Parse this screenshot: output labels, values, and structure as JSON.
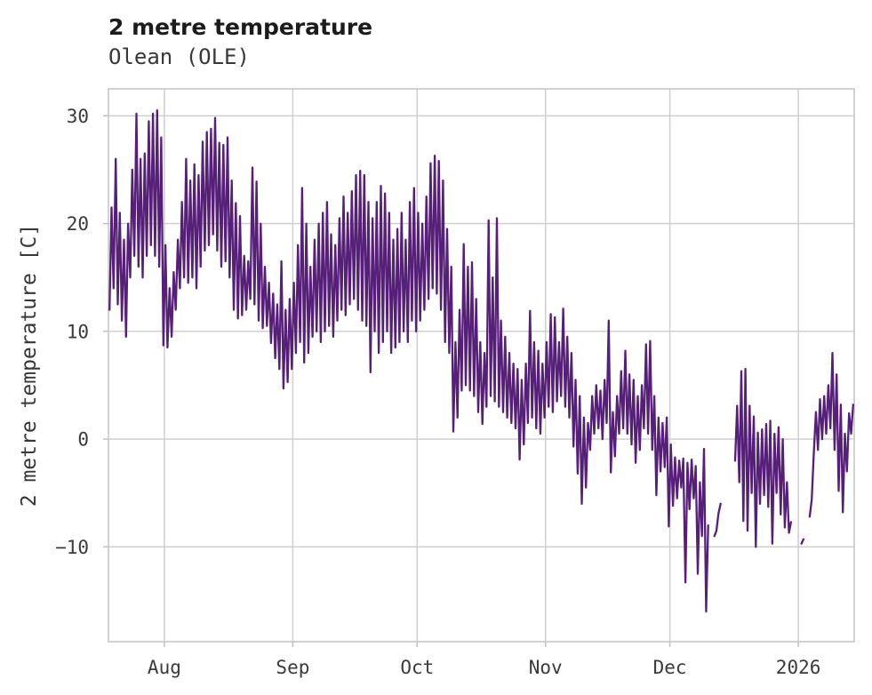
{
  "chart_data": {
    "type": "line",
    "title": "2 metre temperature",
    "subtitle": "Olean (OLE)",
    "ylabel": "2 metre temperature [C]",
    "xlabel": "",
    "line_color": "#561f78",
    "grid_color": "#cccccc",
    "text_color": "#3a3a3a",
    "grid": true,
    "legend_position": "none",
    "x_axis_note": "x in days; day 0 = left edge (mid-July), series runs through the 2026 tick (January); null entries are data gaps drawn as line breaks",
    "xlim": [
      0,
      180
    ],
    "ylim": [
      -18.8,
      32.5
    ],
    "x_ticks": [
      {
        "pos": 13.5,
        "label": "Aug"
      },
      {
        "pos": 44.5,
        "label": "Sep"
      },
      {
        "pos": 74.5,
        "label": "Oct"
      },
      {
        "pos": 105.5,
        "label": "Nov"
      },
      {
        "pos": 135.5,
        "label": "Dec"
      },
      {
        "pos": 166.5,
        "label": "2026"
      }
    ],
    "y_ticks": [
      {
        "pos": 30,
        "label": "30"
      },
      {
        "pos": 20,
        "label": "20"
      },
      {
        "pos": 10,
        "label": "10"
      },
      {
        "pos": 0,
        "label": "0"
      },
      {
        "pos": -10,
        "label": "−10"
      }
    ],
    "daily_min_max": [
      [
        12,
        21.5
      ],
      [
        14,
        26
      ],
      [
        12.5,
        21
      ],
      [
        11,
        18.5
      ],
      [
        9.5,
        20
      ],
      [
        15,
        25
      ],
      [
        17,
        30.2
      ],
      [
        16,
        26
      ],
      [
        15,
        26.5
      ],
      [
        17,
        29.5
      ],
      [
        18,
        30.2
      ],
      [
        17,
        30.5
      ],
      [
        16,
        28
      ],
      [
        8.7,
        18
      ],
      [
        8.5,
        14
      ],
      [
        9.5,
        15.5
      ],
      [
        12,
        18.5
      ],
      [
        14,
        22
      ],
      [
        15,
        26
      ],
      [
        14.5,
        24
      ],
      [
        15,
        25.5
      ],
      [
        14,
        24.5
      ],
      [
        16,
        27.6
      ],
      [
        17.5,
        28.5
      ],
      [
        18,
        28.8
      ],
      [
        19,
        29.8
      ],
      [
        17.5,
        27.5
      ],
      [
        16,
        27.3
      ],
      [
        16.5,
        28
      ],
      [
        15,
        24
      ],
      [
        12,
        21.9
      ],
      [
        11.2,
        20.7
      ],
      [
        11.5,
        17
      ],
      [
        12,
        16.5
      ],
      [
        13,
        25.2
      ],
      [
        12.5,
        23.9
      ],
      [
        11,
        20
      ],
      [
        10.3,
        16
      ],
      [
        10.5,
        14.5
      ],
      [
        8.9,
        13.5
      ],
      [
        7.5,
        12.5
      ],
      [
        6.5,
        16.5
      ],
      [
        4.7,
        12
      ],
      [
        5.3,
        13
      ],
      [
        6.5,
        14.5
      ],
      [
        8,
        18
      ],
      [
        9,
        23.3
      ],
      [
        7.1,
        20
      ],
      [
        8,
        16
      ],
      [
        9.5,
        18.5
      ],
      [
        10,
        20
      ],
      [
        9,
        21
      ],
      [
        10,
        22
      ],
      [
        10.5,
        19
      ],
      [
        9.5,
        18
      ],
      [
        11,
        20.5
      ],
      [
        12,
        22.5
      ],
      [
        11.5,
        21
      ],
      [
        12.5,
        23
      ],
      [
        13,
        24.5
      ],
      [
        12,
        24.9
      ],
      [
        11,
        24.5
      ],
      [
        10.5,
        22
      ],
      [
        6.2,
        20.5
      ],
      [
        10,
        22
      ],
      [
        8,
        23.5
      ],
      [
        9,
        22.8
      ],
      [
        10,
        21
      ],
      [
        8,
        18.5
      ],
      [
        8.5,
        19.5
      ],
      [
        9,
        21
      ],
      [
        10,
        18.5
      ],
      [
        9,
        22
      ],
      [
        11,
        23.3
      ],
      [
        10,
        21
      ],
      [
        11,
        20
      ],
      [
        12,
        22.5
      ],
      [
        13,
        25.6
      ],
      [
        14,
        26.3
      ],
      [
        13.5,
        25.8
      ],
      [
        12,
        24
      ],
      [
        9,
        19.5
      ],
      [
        8,
        16
      ],
      [
        0.7,
        9
      ],
      [
        2,
        12
      ],
      [
        4.5,
        18.1
      ],
      [
        5,
        16
      ],
      [
        4.5,
        16.4
      ],
      [
        4,
        13
      ],
      [
        2.5,
        9
      ],
      [
        1.4,
        8
      ],
      [
        3,
        20.3
      ],
      [
        4,
        15
      ],
      [
        3.5,
        20.5
      ],
      [
        3,
        11
      ],
      [
        2.5,
        9.5
      ],
      [
        2,
        8
      ],
      [
        1.5,
        7
      ],
      [
        1,
        6.5
      ],
      [
        -1.9,
        5.5
      ],
      [
        -0.5,
        7
      ],
      [
        1.5,
        11.9
      ],
      [
        2,
        9
      ],
      [
        1,
        8.2
      ],
      [
        0.5,
        7
      ],
      [
        2,
        9
      ],
      [
        3,
        11.6
      ],
      [
        2.5,
        11.3
      ],
      [
        3.5,
        9
      ],
      [
        4,
        12.1
      ],
      [
        3,
        9.5
      ],
      [
        2,
        8
      ],
      [
        -0.7,
        5.5
      ],
      [
        -3.2,
        4
      ],
      [
        -6,
        2
      ],
      [
        -4.5,
        1.5
      ],
      [
        -1,
        4
      ],
      [
        0.5,
        5
      ],
      [
        1,
        4.5
      ],
      [
        0,
        5.5
      ],
      [
        1.5,
        11
      ],
      [
        -3.1,
        2.5
      ],
      [
        -1.6,
        4
      ],
      [
        0.5,
        6.3
      ],
      [
        1,
        8.2
      ],
      [
        0.5,
        6
      ],
      [
        -0.5,
        5.5
      ],
      [
        -2.2,
        4
      ],
      [
        -1,
        5
      ],
      [
        1,
        8.8
      ],
      [
        0.5,
        9.1
      ],
      [
        -1,
        4
      ],
      [
        -5.2,
        2
      ],
      [
        -3,
        1.5
      ],
      [
        -2.6,
        2
      ],
      [
        -8.1,
        -0.5
      ],
      [
        -6.2,
        -1.7
      ],
      [
        -5.5,
        -2
      ],
      [
        -4.5,
        -1.8
      ],
      [
        -13.3,
        -2.2
      ],
      [
        -6.5,
        -1.9
      ],
      [
        -5.5,
        -2.5
      ],
      [
        -12.5,
        -4
      ],
      [
        -9,
        -0.9
      ],
      [
        -16,
        -8
      ],
      null,
      [
        -9,
        -8.5
      ],
      [
        -6.9,
        -6
      ],
      null,
      null,
      null,
      [
        -2,
        3.1
      ],
      [
        -4,
        6.3
      ],
      [
        -7.6,
        6.5
      ],
      [
        -8.5,
        3.1
      ],
      [
        -5,
        2.1
      ],
      [
        -10,
        0.6
      ],
      [
        -6,
        0.9
      ],
      [
        -5.2,
        1.4
      ],
      [
        -6.3,
        1.7
      ],
      [
        -9.7,
        0.5
      ],
      [
        -5,
        1.1
      ],
      [
        -7,
        0
      ],
      [
        -8.2,
        -4
      ],
      [
        -8.7,
        -7.7
      ],
      null,
      null,
      [
        -9.7,
        -9.3
      ],
      null,
      [
        -7.2,
        -5.6
      ],
      [
        -1.2,
        2.5
      ],
      [
        -1,
        3.7
      ],
      [
        0,
        4
      ],
      [
        0.5,
        5
      ],
      [
        1,
        8
      ],
      [
        -1,
        6
      ],
      [
        -4.8,
        3.2
      ],
      [
        -6.8,
        0.5
      ],
      [
        -3,
        2.4
      ],
      [
        0.5,
        3.2
      ]
    ]
  }
}
